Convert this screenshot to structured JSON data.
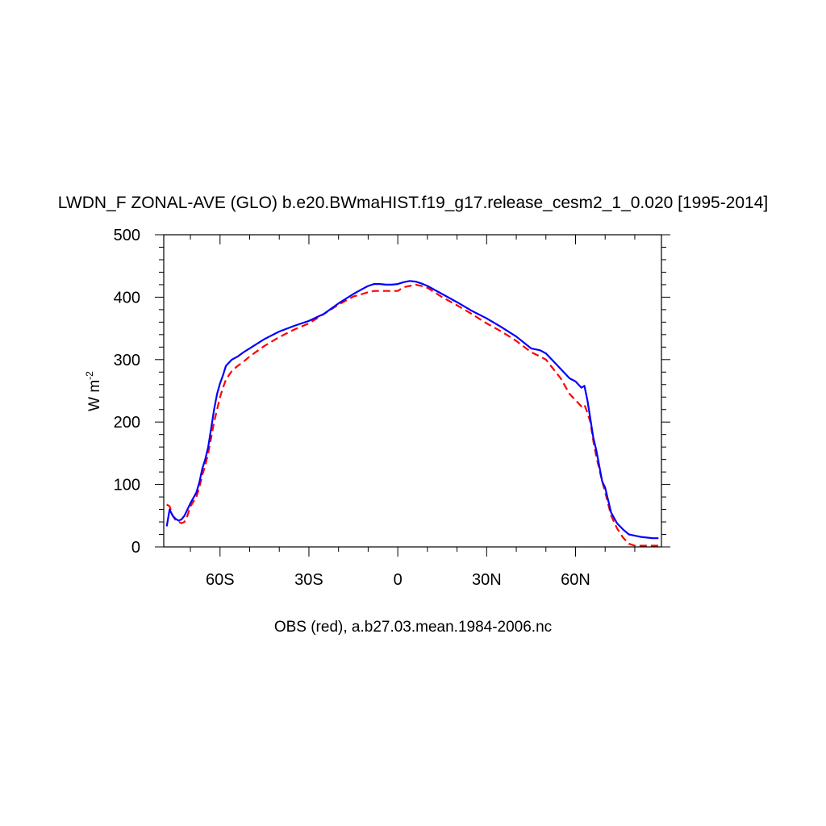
{
  "chart_data": {
    "type": "line",
    "title": "LWDN_F ZONAL-AVE (GLO) b.e20.BWmaHIST.f19_g17.release_cesm2_1_0.020 [1995-2014]",
    "ylabel": "W m",
    "ylabel_superscript": "-2",
    "xlabel": "OBS (red), a.b27.03.mean.1984-2006.nc",
    "xlim": [
      -79,
      89
    ],
    "ylim": [
      0,
      500
    ],
    "x_ticks": [
      {
        "value": -60,
        "label": "60S"
      },
      {
        "value": -30,
        "label": "30S"
      },
      {
        "value": 0,
        "label": "0"
      },
      {
        "value": 30,
        "label": "30N"
      },
      {
        "value": 60,
        "label": "60N"
      }
    ],
    "y_ticks": [
      {
        "value": 0,
        "label": "0"
      },
      {
        "value": 100,
        "label": "100"
      },
      {
        "value": 200,
        "label": "200"
      },
      {
        "value": 300,
        "label": "300"
      },
      {
        "value": 400,
        "label": "400"
      },
      {
        "value": 500,
        "label": "500"
      }
    ],
    "grid": false,
    "series": [
      {
        "name": "",
        "color": "#0000ff",
        "dash": "solid",
        "x": [
          -78,
          -77,
          -76,
          -75,
          -74,
          -73,
          -72,
          -71,
          -70,
          -68,
          -67,
          -66,
          -65,
          -64,
          -63,
          -62,
          -61,
          -60,
          -59,
          -58,
          -56,
          -54,
          -52,
          -50,
          -45,
          -40,
          -35,
          -30,
          -25,
          -20,
          -15,
          -12,
          -10,
          -8,
          -6,
          -4,
          -2,
          0,
          2,
          4,
          6,
          8,
          10,
          15,
          20,
          25,
          30,
          35,
          40,
          45,
          48,
          50,
          52,
          55,
          58,
          60,
          62,
          63,
          64,
          65,
          66,
          67,
          68,
          69,
          70,
          72,
          74,
          76,
          78,
          80,
          82,
          84,
          86,
          88
        ],
        "y": [
          33,
          60,
          50,
          45,
          42,
          44,
          50,
          60,
          70,
          87,
          103,
          125,
          140,
          160,
          190,
          220,
          245,
          262,
          275,
          290,
          300,
          305,
          312,
          318,
          333,
          345,
          354,
          362,
          373,
          390,
          405,
          413,
          418,
          421,
          421,
          420,
          420,
          421,
          424,
          426,
          425,
          422,
          418,
          405,
          392,
          378,
          366,
          352,
          337,
          318,
          315,
          310,
          300,
          285,
          270,
          265,
          255,
          258,
          235,
          205,
          175,
          155,
          130,
          105,
          95,
          55,
          38,
          28,
          20,
          18,
          16,
          15,
          14,
          14
        ]
      },
      {
        "name": "OBS",
        "color": "#ff0000",
        "dash": "dashed",
        "x": [
          -78,
          -77,
          -76,
          -75,
          -74,
          -73,
          -72,
          -71,
          -70,
          -68,
          -67,
          -66,
          -65,
          -64,
          -63,
          -62,
          -61,
          -60,
          -59,
          -58,
          -56,
          -54,
          -52,
          -50,
          -45,
          -40,
          -35,
          -30,
          -25,
          -20,
          -15,
          -12,
          -10,
          -8,
          -6,
          -4,
          -2,
          0,
          2,
          4,
          6,
          8,
          10,
          15,
          20,
          25,
          30,
          35,
          40,
          45,
          48,
          50,
          52,
          55,
          58,
          60,
          62,
          63,
          64,
          65,
          66,
          67,
          68,
          69,
          70,
          72,
          74,
          76,
          78,
          80,
          82,
          84,
          86,
          88
        ],
        "y": [
          68,
          65,
          50,
          43,
          40,
          38,
          40,
          50,
          65,
          80,
          95,
          115,
          130,
          150,
          175,
          200,
          220,
          240,
          255,
          268,
          282,
          290,
          297,
          305,
          322,
          336,
          348,
          358,
          373,
          388,
          401,
          405,
          408,
          410,
          410,
          410,
          410,
          410,
          416,
          418,
          420,
          418,
          415,
          400,
          387,
          373,
          358,
          345,
          330,
          312,
          305,
          300,
          288,
          270,
          245,
          235,
          225,
          228,
          215,
          200,
          170,
          145,
          125,
          105,
          88,
          50,
          30,
          15,
          5,
          2,
          2,
          2,
          2,
          2
        ]
      }
    ]
  }
}
